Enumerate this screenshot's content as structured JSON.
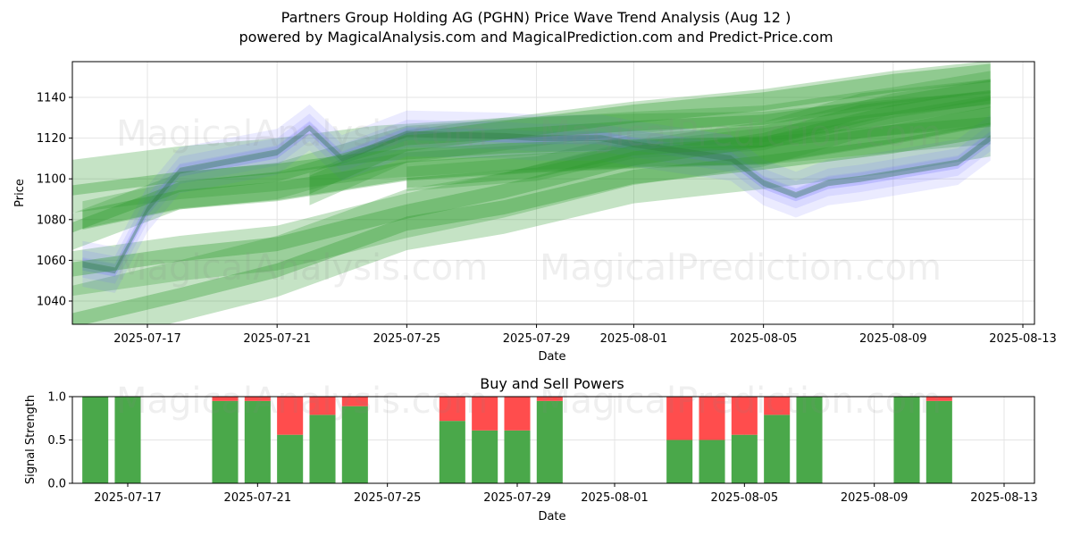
{
  "header": {
    "title": "Partners Group Holding AG (PGHN) Price Wave Trend Analysis (Aug 12 )",
    "subtitle": "powered by MagicalAnalysis.com and MagicalPrediction.com and Predict-Price.com"
  },
  "watermarks": {
    "analysis": "MagicalAnalysis.com",
    "prediction": "MagicalPrediction.com"
  },
  "chart_data": [
    {
      "type": "area",
      "title": "",
      "xlabel": "Date",
      "ylabel": "Price",
      "xlim": [
        "2025-07-13",
        "2025-08-13"
      ],
      "ylim": [
        1028,
        1157
      ],
      "x_ticks": [
        "2025-07-17",
        "2025-07-21",
        "2025-07-25",
        "2025-07-29",
        "2025-08-01",
        "2025-08-05",
        "2025-08-09",
        "2025-08-13"
      ],
      "y_ticks": [
        1040,
        1060,
        1080,
        1100,
        1120,
        1140
      ],
      "grid": true,
      "colors": {
        "price_bands": "#6f6fff",
        "trend_bands": "#2e9b2e"
      },
      "series": [
        {
          "kind": "price-wave-bands",
          "points": [
            [
              "2025-07-15",
              1058
            ],
            [
              "2025-07-16",
              1055
            ],
            [
              "2025-07-17",
              1085
            ],
            [
              "2025-07-18",
              1104
            ],
            [
              "2025-07-21",
              1113
            ],
            [
              "2025-07-22",
              1125
            ],
            [
              "2025-07-23",
              1110
            ],
            [
              "2025-07-25",
              1122
            ],
            [
              "2025-07-28",
              1121
            ],
            [
              "2025-07-29",
              1120
            ],
            [
              "2025-07-31",
              1120
            ],
            [
              "2025-08-01",
              1117
            ],
            [
              "2025-08-04",
              1110
            ],
            [
              "2025-08-05",
              1098
            ],
            [
              "2025-08-06",
              1092
            ],
            [
              "2025-08-07",
              1098
            ],
            [
              "2025-08-08",
              1100
            ],
            [
              "2025-08-11",
              1108
            ],
            [
              "2025-08-12",
              1120
            ]
          ]
        },
        {
          "kind": "trend-bands",
          "lines": [
            [
              [
                "2025-07-14",
                1095
              ],
              [
                "2025-07-18",
                1103
              ],
              [
                "2025-07-21",
                1107
              ],
              [
                "2025-07-24",
                1113
              ],
              [
                "2025-07-28",
                1117
              ],
              [
                "2025-08-01",
                1119
              ],
              [
                "2025-08-05",
                1120
              ],
              [
                "2025-08-09",
                1126
              ],
              [
                "2025-08-12",
                1130
              ]
            ],
            [
              [
                "2025-07-14",
                1052
              ],
              [
                "2025-07-18",
                1061
              ],
              [
                "2025-07-21",
                1066
              ],
              [
                "2025-07-25",
                1082
              ],
              [
                "2025-07-28",
                1092
              ],
              [
                "2025-08-01",
                1108
              ],
              [
                "2025-08-05",
                1117
              ],
              [
                "2025-08-08",
                1131
              ],
              [
                "2025-08-12",
                1138
              ]
            ],
            [
              [
                "2025-07-15",
                1082
              ],
              [
                "2025-07-18",
                1092
              ],
              [
                "2025-07-21",
                1096
              ],
              [
                "2025-07-25",
                1106
              ],
              [
                "2025-07-29",
                1110
              ],
              [
                "2025-08-01",
                1112
              ],
              [
                "2025-08-05",
                1114
              ],
              [
                "2025-08-09",
                1124
              ],
              [
                "2025-08-12",
                1133
              ]
            ],
            [
              [
                "2025-07-14",
                1070
              ],
              [
                "2025-07-18",
                1094
              ],
              [
                "2025-07-21",
                1099
              ],
              [
                "2025-07-25",
                1117
              ],
              [
                "2025-07-29",
                1121
              ],
              [
                "2025-08-01",
                1124
              ],
              [
                "2025-08-05",
                1127
              ],
              [
                "2025-08-09",
                1136
              ],
              [
                "2025-08-12",
                1144
              ]
            ],
            [
              [
                "2025-07-14",
                1030
              ],
              [
                "2025-07-18",
                1045
              ],
              [
                "2025-07-21",
                1057
              ],
              [
                "2025-07-25",
                1080
              ],
              [
                "2025-07-28",
                1088
              ],
              [
                "2025-08-01",
                1103
              ],
              [
                "2025-08-05",
                1110
              ],
              [
                "2025-08-09",
                1118
              ],
              [
                "2025-08-12",
                1126
              ]
            ],
            [
              [
                "2025-07-22",
                1095
              ],
              [
                "2025-07-25",
                1116
              ],
              [
                "2025-07-29",
                1124
              ],
              [
                "2025-08-01",
                1130
              ],
              [
                "2025-08-05",
                1136
              ],
              [
                "2025-08-09",
                1145
              ],
              [
                "2025-08-12",
                1150
              ]
            ],
            [
              [
                "2025-07-25",
                1100
              ],
              [
                "2025-07-29",
                1105
              ],
              [
                "2025-08-01",
                1116
              ],
              [
                "2025-08-05",
                1120
              ],
              [
                "2025-08-09",
                1136
              ],
              [
                "2025-08-12",
                1143
              ]
            ]
          ]
        }
      ]
    },
    {
      "type": "bar",
      "title": "Buy and Sell Powers",
      "xlabel": "Date",
      "ylabel": "Signal Strength",
      "ylim": [
        0,
        1
      ],
      "y_ticks": [
        "0.0",
        "0.5",
        "1.0"
      ],
      "x_ticks": [
        "2025-07-17",
        "2025-07-21",
        "2025-07-25",
        "2025-07-29",
        "2025-08-01",
        "2025-08-05",
        "2025-08-09",
        "2025-08-13"
      ],
      "colors": {
        "buy": "#4aa84a",
        "sell": "#ff4d4d"
      },
      "bars": [
        {
          "date": "2025-07-16",
          "buy": 1.0
        },
        {
          "date": "2025-07-17",
          "buy": 1.0
        },
        {
          "date": "2025-07-20",
          "buy": 0.95
        },
        {
          "date": "2025-07-21",
          "buy": 0.95
        },
        {
          "date": "2025-07-22",
          "buy": 0.56
        },
        {
          "date": "2025-07-23",
          "buy": 0.79
        },
        {
          "date": "2025-07-24",
          "buy": 0.89
        },
        {
          "date": "2025-07-27",
          "buy": 0.72
        },
        {
          "date": "2025-07-28",
          "buy": 0.61
        },
        {
          "date": "2025-07-29",
          "buy": 0.61
        },
        {
          "date": "2025-07-30",
          "buy": 0.95
        },
        {
          "date": "2025-08-03",
          "buy": 0.5
        },
        {
          "date": "2025-08-04",
          "buy": 0.5
        },
        {
          "date": "2025-08-05",
          "buy": 0.56
        },
        {
          "date": "2025-08-06",
          "buy": 0.79
        },
        {
          "date": "2025-08-07",
          "buy": 1.0
        },
        {
          "date": "2025-08-10",
          "buy": 1.0
        },
        {
          "date": "2025-08-11",
          "buy": 0.95
        }
      ]
    }
  ]
}
